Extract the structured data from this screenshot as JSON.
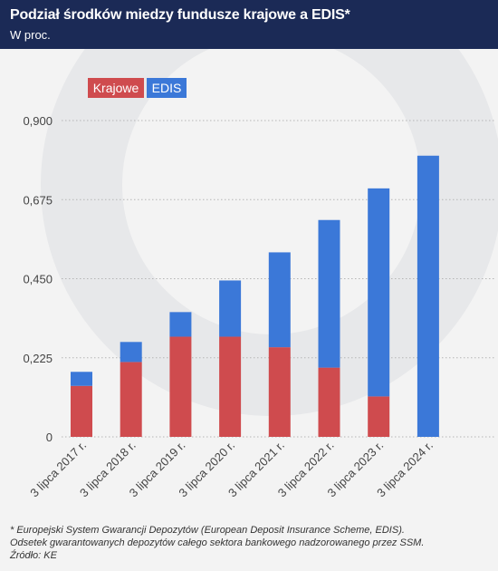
{
  "header": {
    "title": "Podział środków miedzy fundusze krajowe a EDIS*",
    "subtitle": "W proc."
  },
  "colors": {
    "header_bg": "#1b2a56",
    "krajowe": "#cf4b4e",
    "edis": "#3b78d8",
    "grid": "#b5b5b5",
    "axis_text": "#444444"
  },
  "chart_data": {
    "type": "bar",
    "stacked": true,
    "categories": [
      "3 lipca 2017 r.",
      "3 lipca 2018 r.",
      "3 lipca 2019 r.",
      "3 lipca 2020 r.",
      "3 lipca 2021 r.",
      "3 lipca 2022 r.",
      "3 lipca 2023 r.",
      "3 lipca 2024 r."
    ],
    "series": [
      {
        "name": "Krajowe",
        "color": "#cf4b4e",
        "values": [
          0.145,
          0.213,
          0.285,
          0.285,
          0.255,
          0.197,
          0.115,
          0.0
        ]
      },
      {
        "name": "EDIS",
        "color": "#3b78d8",
        "values": [
          0.04,
          0.057,
          0.07,
          0.16,
          0.27,
          0.42,
          0.592,
          0.8
        ]
      }
    ],
    "yticks": [
      "0",
      "0,225",
      "0,450",
      "0,675",
      "0,900"
    ],
    "ytick_values": [
      0,
      0.225,
      0.45,
      0.675,
      0.9
    ],
    "ylim": [
      0,
      0.9
    ],
    "legend_position": "top-left",
    "grid": true
  },
  "footnote": {
    "line1": "* Europejski System Gwarancji Depozytów (European Deposit Insurance Scheme, EDIS).",
    "line2": "Odsetek gwarantowanych depozytów całego sektora bankowego nadzorowanego przez SSM.",
    "line3": "Źródło: KE"
  }
}
